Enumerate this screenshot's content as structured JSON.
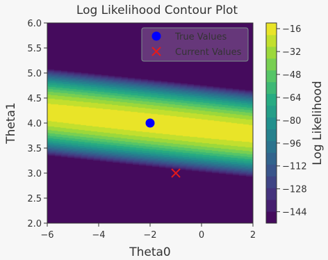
{
  "chart_data": {
    "type": "contour",
    "title": "Log Likelihood Contour Plot",
    "xlabel": "Theta0",
    "ylabel": "Theta1",
    "xlim": [
      -6,
      2
    ],
    "ylim": [
      2.0,
      6.0
    ],
    "x_ticks": [
      "−6",
      "−4",
      "−2",
      "0",
      "2"
    ],
    "x_tick_values": [
      -6,
      -4,
      -2,
      0,
      2
    ],
    "y_ticks": [
      "2.0",
      "2.5",
      "3.0",
      "3.5",
      "4.0",
      "4.5",
      "5.0",
      "5.5",
      "6.0"
    ],
    "y_tick_values": [
      2.0,
      2.5,
      3.0,
      3.5,
      4.0,
      4.5,
      5.0,
      5.5,
      6.0
    ],
    "colorbar": {
      "label": "Log Likelihood",
      "ticks": [
        "−16",
        "−32",
        "−48",
        "−64",
        "−80",
        "−96",
        "−112",
        "−128",
        "−144"
      ],
      "tick_values": [
        -16,
        -32,
        -48,
        -64,
        -80,
        -96,
        -112,
        -128,
        -144
      ],
      "range": [
        -152,
        -12
      ],
      "colormap": "viridis",
      "levels": 17
    },
    "points": [
      {
        "name": "True Values",
        "x": -2,
        "y": 4.0,
        "marker": "circle",
        "color": "#0000ff"
      },
      {
        "name": "Current Values",
        "x": -1,
        "y": 3.0,
        "marker": "x",
        "color": "#e41a1c"
      }
    ],
    "legend_position": "top-right",
    "grid": false
  }
}
